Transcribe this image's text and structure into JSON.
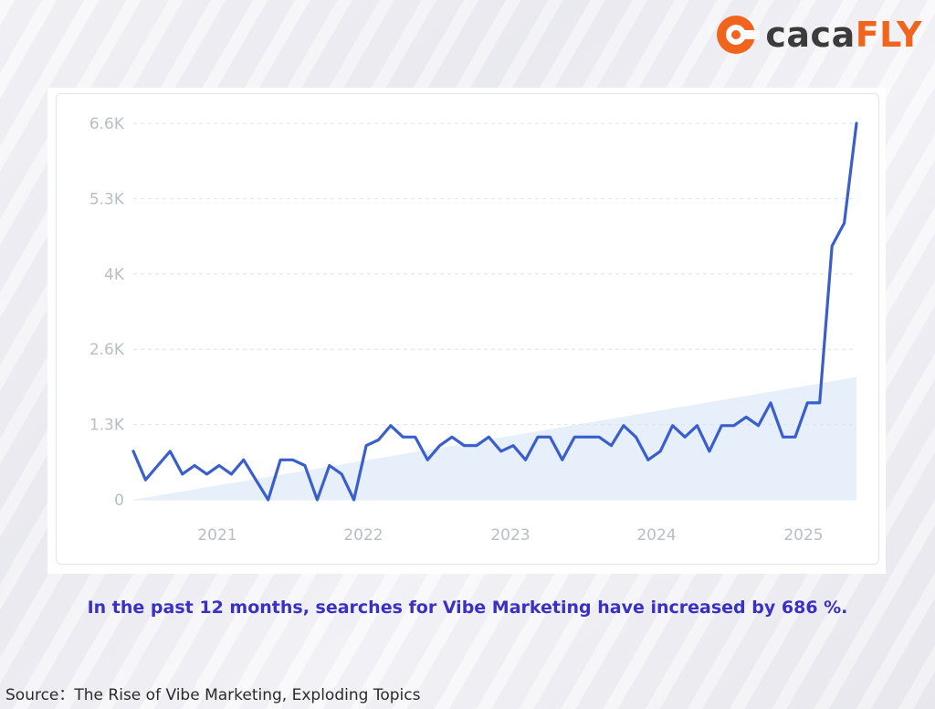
{
  "logo": {
    "text_lower": "caca",
    "text_upper": "FLY",
    "brand_color": "#f0641e",
    "icon": "cacafly-logo-icon"
  },
  "caption": "In the past 12 months, searches for Vibe Marketing have increased by 686 %.",
  "source": "Source：The Rise of Vibe Marketing, Exploding Topics",
  "chart_data": {
    "type": "line",
    "title": "",
    "xlabel": "",
    "ylabel": "",
    "ylim": [
      0,
      6600
    ],
    "yticks": [
      {
        "label": "0",
        "value": 0
      },
      {
        "label": "1.3K",
        "value": 1320
      },
      {
        "label": "2.6K",
        "value": 2640
      },
      {
        "label": "4K",
        "value": 3960
      },
      {
        "label": "5.3K",
        "value": 5280
      },
      {
        "label": "6.6K",
        "value": 6600
      }
    ],
    "xticks": [
      "2021",
      "2022",
      "2023",
      "2024",
      "2025"
    ],
    "grid": "horizontal dashed",
    "line_color": "#3a5fcd",
    "trend_fill_color": "#e3edf9",
    "trend_range": [
      0,
      2150
    ],
    "series": [
      {
        "values": [
          850,
          350,
          600,
          850,
          450,
          600,
          450,
          600,
          450,
          700,
          350,
          0,
          700,
          700,
          600,
          0,
          600,
          450,
          0,
          950,
          1050,
          1300,
          1100,
          1100,
          700,
          950,
          1100,
          950,
          950,
          1100,
          850,
          950,
          700,
          1100,
          1100,
          700,
          1100,
          1100,
          1100,
          950,
          1300,
          1100,
          700,
          850,
          1300,
          1100,
          1300,
          850,
          1300,
          1300,
          1450,
          1300,
          1700,
          1100,
          1100,
          1700,
          1700,
          4450,
          4850,
          6600
        ]
      }
    ]
  }
}
